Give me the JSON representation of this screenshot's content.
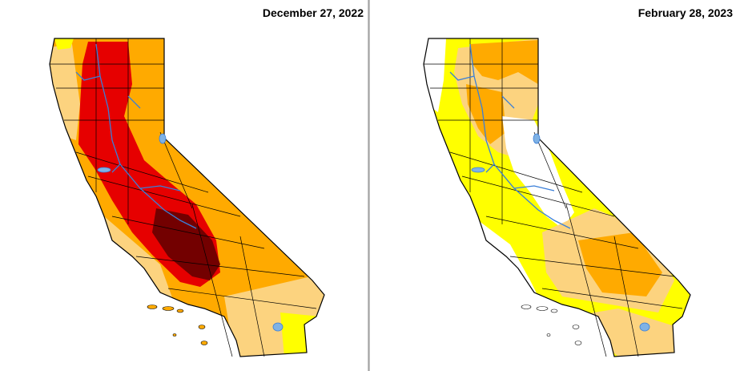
{
  "panels": [
    {
      "date": "December 27, 2022"
    },
    {
      "date": "February 28, 2023"
    }
  ],
  "drought_colors": {
    "none": "#ffffff",
    "D0": "#ffff00",
    "D1": "#fcd37f",
    "D2": "#ffaa00",
    "D3": "#e60000",
    "D4": "#730000"
  },
  "water_color": "#7fb2e5",
  "river_color": "#3a7fd8",
  "county_line_color": "#000000"
}
